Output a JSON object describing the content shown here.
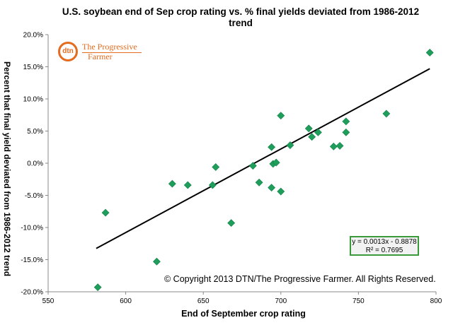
{
  "chart_data": {
    "type": "scatter",
    "title": "U.S. soybean end of Sep crop rating vs. % final yields deviated from 1986-2012 trend",
    "title_line1": "U.S. soybean end of Sep crop rating vs. % final yields deviated from 1986-2012",
    "title_line2": "trend",
    "xlabel": "End of September crop rating",
    "ylabel": "Percent that final yield deviated from 1986-2012 trend",
    "xlim": [
      550,
      800
    ],
    "ylim": [
      -0.2,
      0.2
    ],
    "x_ticks": [
      550,
      600,
      650,
      700,
      750,
      800
    ],
    "x_tick_labels": [
      "550",
      "600",
      "650",
      "700",
      "750",
      "800"
    ],
    "y_ticks": [
      -0.2,
      -0.15,
      -0.1,
      -0.05,
      0,
      0.05,
      0.1,
      0.15,
      0.2
    ],
    "y_tick_labels": [
      "-20.0%",
      "-15.0%",
      "-10.0%",
      "-5.0%",
      "0.0%",
      "5.0%",
      "10.0%",
      "15.0%",
      "20.0%"
    ],
    "grid": false,
    "marker_color": "#1e9e5a",
    "trendline_color": "#000000",
    "points": [
      {
        "x": 582,
        "y": -0.193
      },
      {
        "x": 587,
        "y": -0.077
      },
      {
        "x": 620,
        "y": -0.153
      },
      {
        "x": 630,
        "y": -0.032
      },
      {
        "x": 640,
        "y": -0.034
      },
      {
        "x": 656,
        "y": -0.034
      },
      {
        "x": 658,
        "y": -0.006
      },
      {
        "x": 668,
        "y": -0.093
      },
      {
        "x": 682,
        "y": -0.004
      },
      {
        "x": 686,
        "y": -0.03
      },
      {
        "x": 694,
        "y": -0.038
      },
      {
        "x": 694,
        "y": 0.025
      },
      {
        "x": 695,
        "y": -0.001
      },
      {
        "x": 697,
        "y": 0.001
      },
      {
        "x": 700,
        "y": -0.044
      },
      {
        "x": 700,
        "y": 0.074
      },
      {
        "x": 706,
        "y": 0.028
      },
      {
        "x": 718,
        "y": 0.054
      },
      {
        "x": 720,
        "y": 0.041
      },
      {
        "x": 724,
        "y": 0.048
      },
      {
        "x": 734,
        "y": 0.026
      },
      {
        "x": 738,
        "y": 0.027
      },
      {
        "x": 742,
        "y": 0.048
      },
      {
        "x": 742,
        "y": 0.065
      },
      {
        "x": 768,
        "y": 0.077
      },
      {
        "x": 796,
        "y": 0.172
      }
    ],
    "trendline": {
      "slope": 0.0013,
      "intercept": -0.8878,
      "x_range": [
        581,
        796
      ]
    },
    "equation": "y = 0.0013x - 0.8878",
    "r_squared": "R² = 0.7695"
  },
  "copyright": "© Copyright 2013 DTN/The Progressive Farmer. All Rights Reserved.",
  "logo": {
    "mark": "dtn",
    "line1": "The Progressive",
    "line2": "Farmer",
    "color": "#e36c1f"
  }
}
